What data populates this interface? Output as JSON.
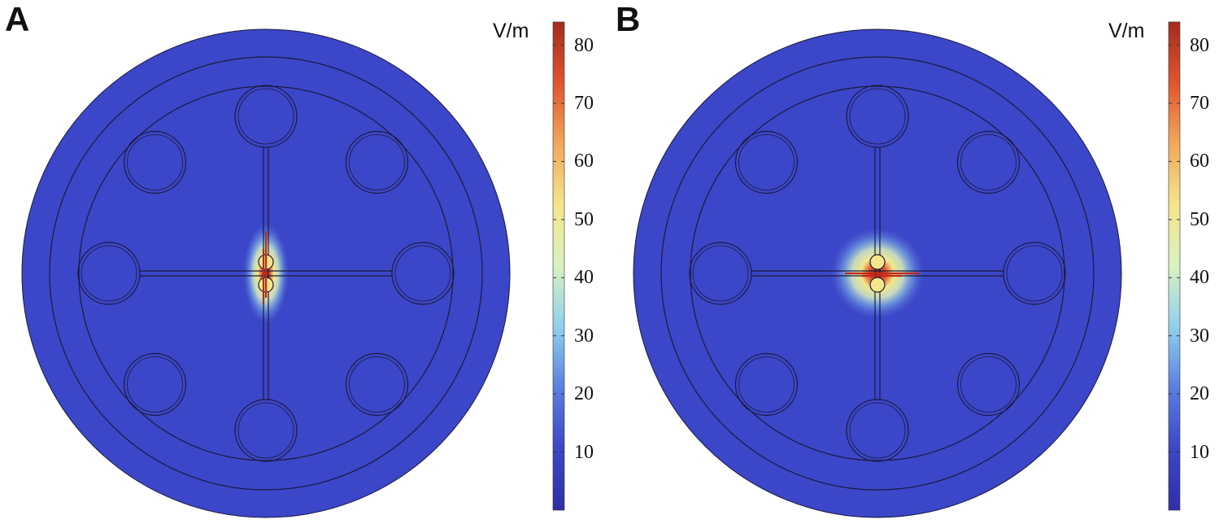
{
  "panels": [
    {
      "label": "A",
      "field_orientation": "vertical"
    },
    {
      "label": "B",
      "field_orientation": "horizontal"
    }
  ],
  "colorbar": {
    "unit": "V/m",
    "ticks": [
      "80",
      "70",
      "60",
      "50",
      "40",
      "30",
      "20",
      "10"
    ],
    "range": [
      0,
      84
    ],
    "colors": [
      "#2f2fa8",
      "#3c46c8",
      "#5a7ee0",
      "#8fd0ee",
      "#d9f2c0",
      "#f4e68a",
      "#f2a85a",
      "#e0552e",
      "#a52b1e"
    ]
  },
  "colors": {
    "domain_fill": "#3c46c8",
    "outline": "#1a1a3a"
  }
}
